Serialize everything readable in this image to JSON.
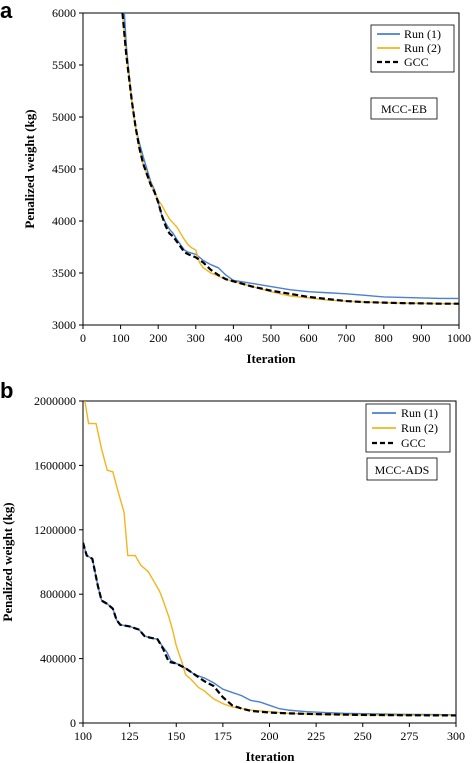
{
  "chart_data": [
    {
      "type": "line",
      "panel_label": "a",
      "xlabel": "Iteration",
      "ylabel": "Penalized weight (kg)",
      "xlim": [
        0,
        1000
      ],
      "ylim": [
        3000,
        6000
      ],
      "x_ticks": [
        0,
        100,
        200,
        300,
        400,
        500,
        600,
        700,
        800,
        900,
        1000
      ],
      "y_ticks": [
        3000,
        3500,
        4000,
        4500,
        5000,
        5500,
        6000
      ],
      "x_tick_labels": [
        "0",
        "100",
        "200",
        "300",
        "400",
        "500",
        "600",
        "700",
        "800",
        "900",
        "1000"
      ],
      "y_tick_labels": [
        "3000",
        "3500",
        "4000",
        "4500",
        "5000",
        "5500",
        "6000"
      ],
      "grid": false,
      "legend_position": "top-right",
      "tag": "MCC-EB",
      "series": [
        {
          "name": "Run (1)",
          "color": "#4a7fd4",
          "style": "solid",
          "points": [
            [
              110,
              6000
            ],
            [
              115,
              5700
            ],
            [
              120,
              5500
            ],
            [
              130,
              5150
            ],
            [
              140,
              4900
            ],
            [
              150,
              4750
            ],
            [
              160,
              4620
            ],
            [
              170,
              4500
            ],
            [
              180,
              4380
            ],
            [
              190,
              4300
            ],
            [
              200,
              4180
            ],
            [
              210,
              4050
            ],
            [
              220,
              3980
            ],
            [
              230,
              3920
            ],
            [
              240,
              3880
            ],
            [
              250,
              3820
            ],
            [
              260,
              3770
            ],
            [
              270,
              3720
            ],
            [
              280,
              3700
            ],
            [
              300,
              3680
            ],
            [
              320,
              3620
            ],
            [
              340,
              3580
            ],
            [
              360,
              3550
            ],
            [
              380,
              3480
            ],
            [
              400,
              3430
            ],
            [
              450,
              3400
            ],
            [
              500,
              3370
            ],
            [
              550,
              3340
            ],
            [
              600,
              3320
            ],
            [
              650,
              3310
            ],
            [
              700,
              3300
            ],
            [
              750,
              3285
            ],
            [
              800,
              3270
            ],
            [
              850,
              3265
            ],
            [
              900,
              3260
            ],
            [
              950,
              3255
            ],
            [
              1000,
              3255
            ]
          ]
        },
        {
          "name": "Run (2)",
          "color": "#f2b51d",
          "style": "solid",
          "points": [
            [
              105,
              6000
            ],
            [
              110,
              5800
            ],
            [
              115,
              5600
            ],
            [
              120,
              5450
            ],
            [
              130,
              5150
            ],
            [
              140,
              4900
            ],
            [
              150,
              4700
            ],
            [
              160,
              4550
            ],
            [
              170,
              4450
            ],
            [
              180,
              4350
            ],
            [
              190,
              4280
            ],
            [
              200,
              4200
            ],
            [
              210,
              4150
            ],
            [
              220,
              4080
            ],
            [
              230,
              4020
            ],
            [
              240,
              3980
            ],
            [
              250,
              3940
            ],
            [
              260,
              3880
            ],
            [
              270,
              3820
            ],
            [
              280,
              3770
            ],
            [
              290,
              3740
            ],
            [
              300,
              3720
            ],
            [
              310,
              3600
            ],
            [
              320,
              3550
            ],
            [
              340,
              3500
            ],
            [
              360,
              3470
            ],
            [
              380,
              3440
            ],
            [
              400,
              3420
            ],
            [
              450,
              3370
            ],
            [
              500,
              3320
            ],
            [
              550,
              3280
            ],
            [
              600,
              3260
            ],
            [
              650,
              3240
            ],
            [
              700,
              3230
            ],
            [
              750,
              3220
            ],
            [
              800,
              3215
            ],
            [
              850,
              3210
            ],
            [
              900,
              3208
            ],
            [
              950,
              3205
            ],
            [
              1000,
              3205
            ]
          ]
        },
        {
          "name": "GCC",
          "color": "#000000",
          "style": "dashed",
          "points": [
            [
              105,
              6000
            ],
            [
              110,
              5800
            ],
            [
              115,
              5600
            ],
            [
              120,
              5450
            ],
            [
              130,
              5150
            ],
            [
              140,
              4900
            ],
            [
              150,
              4700
            ],
            [
              160,
              4550
            ],
            [
              170,
              4450
            ],
            [
              180,
              4350
            ],
            [
              190,
              4280
            ],
            [
              200,
              4180
            ],
            [
              210,
              4050
            ],
            [
              220,
              3950
            ],
            [
              230,
              3880
            ],
            [
              240,
              3850
            ],
            [
              250,
              3800
            ],
            [
              260,
              3750
            ],
            [
              270,
              3700
            ],
            [
              280,
              3680
            ],
            [
              300,
              3650
            ],
            [
              320,
              3600
            ],
            [
              340,
              3530
            ],
            [
              360,
              3480
            ],
            [
              380,
              3440
            ],
            [
              400,
              3420
            ],
            [
              450,
              3370
            ],
            [
              500,
              3330
            ],
            [
              550,
              3300
            ],
            [
              600,
              3270
            ],
            [
              650,
              3250
            ],
            [
              700,
              3230
            ],
            [
              750,
              3220
            ],
            [
              800,
              3215
            ],
            [
              850,
              3210
            ],
            [
              900,
              3208
            ],
            [
              950,
              3205
            ],
            [
              1000,
              3205
            ]
          ]
        }
      ]
    },
    {
      "type": "line",
      "panel_label": "b",
      "xlabel": "Iteration",
      "ylabel": "Penalized weight (kg)",
      "xlim": [
        100,
        300
      ],
      "ylim": [
        0,
        2000000
      ],
      "x_ticks": [
        100,
        125,
        150,
        175,
        200,
        225,
        250,
        275,
        300
      ],
      "y_ticks": [
        0,
        400000,
        800000,
        1200000,
        1600000,
        2000000
      ],
      "x_tick_labels": [
        "100",
        "125",
        "150",
        "175",
        "200",
        "225",
        "250",
        "275",
        "300"
      ],
      "y_tick_labels": [
        "0",
        "400000",
        "800000",
        "1200000",
        "1600000",
        "2000000"
      ],
      "grid": false,
      "legend_position": "top-right",
      "tag": "MCC-ADS",
      "series": [
        {
          "name": "Run (1)",
          "color": "#4a7fd4",
          "style": "solid",
          "points": [
            [
              100,
              1120000
            ],
            [
              102,
              1040000
            ],
            [
              105,
              1020000
            ],
            [
              108,
              850000
            ],
            [
              110,
              760000
            ],
            [
              113,
              740000
            ],
            [
              116,
              710000
            ],
            [
              118,
              640000
            ],
            [
              120,
              610000
            ],
            [
              125,
              600000
            ],
            [
              130,
              580000
            ],
            [
              133,
              540000
            ],
            [
              136,
              530000
            ],
            [
              140,
              520000
            ],
            [
              143,
              470000
            ],
            [
              145,
              440000
            ],
            [
              147,
              390000
            ],
            [
              150,
              370000
            ],
            [
              155,
              340000
            ],
            [
              160,
              300000
            ],
            [
              165,
              280000
            ],
            [
              170,
              250000
            ],
            [
              175,
              210000
            ],
            [
              180,
              190000
            ],
            [
              185,
              170000
            ],
            [
              190,
              140000
            ],
            [
              195,
              130000
            ],
            [
              200,
              110000
            ],
            [
              205,
              90000
            ],
            [
              210,
              80000
            ],
            [
              220,
              70000
            ],
            [
              230,
              65000
            ],
            [
              240,
              60000
            ],
            [
              250,
              58000
            ],
            [
              260,
              56000
            ],
            [
              270,
              54000
            ],
            [
              280,
              53000
            ],
            [
              290,
              52000
            ],
            [
              300,
              50000
            ]
          ]
        },
        {
          "name": "Run (2)",
          "color": "#f2b51d",
          "style": "solid",
          "points": [
            [
              101,
              2000000
            ],
            [
              103,
              1860000
            ],
            [
              107,
              1860000
            ],
            [
              110,
              1700000
            ],
            [
              113,
              1570000
            ],
            [
              116,
              1560000
            ],
            [
              119,
              1430000
            ],
            [
              122,
              1310000
            ],
            [
              124,
              1040000
            ],
            [
              128,
              1040000
            ],
            [
              131,
              980000
            ],
            [
              135,
              940000
            ],
            [
              138,
              880000
            ],
            [
              141,
              820000
            ],
            [
              143,
              760000
            ],
            [
              146,
              660000
            ],
            [
              148,
              580000
            ],
            [
              150,
              480000
            ],
            [
              153,
              380000
            ],
            [
              155,
              300000
            ],
            [
              158,
              270000
            ],
            [
              162,
              220000
            ],
            [
              165,
              200000
            ],
            [
              170,
              150000
            ],
            [
              175,
              120000
            ],
            [
              180,
              100000
            ],
            [
              190,
              80000
            ],
            [
              200,
              70000
            ],
            [
              210,
              60000
            ],
            [
              225,
              55000
            ],
            [
              250,
              50000
            ],
            [
              275,
              48000
            ],
            [
              300,
              47000
            ]
          ]
        },
        {
          "name": "GCC",
          "color": "#000000",
          "style": "dashed",
          "points": [
            [
              100,
              1120000
            ],
            [
              102,
              1040000
            ],
            [
              105,
              1020000
            ],
            [
              108,
              850000
            ],
            [
              110,
              760000
            ],
            [
              113,
              740000
            ],
            [
              116,
              710000
            ],
            [
              118,
              640000
            ],
            [
              120,
              610000
            ],
            [
              125,
              600000
            ],
            [
              130,
              580000
            ],
            [
              133,
              540000
            ],
            [
              136,
              530000
            ],
            [
              140,
              520000
            ],
            [
              143,
              460000
            ],
            [
              146,
              380000
            ],
            [
              150,
              370000
            ],
            [
              155,
              340000
            ],
            [
              160,
              300000
            ],
            [
              165,
              260000
            ],
            [
              170,
              230000
            ],
            [
              175,
              160000
            ],
            [
              180,
              110000
            ],
            [
              185,
              90000
            ],
            [
              190,
              75000
            ],
            [
              200,
              65000
            ],
            [
              210,
              60000
            ],
            [
              225,
              55000
            ],
            [
              250,
              50000
            ],
            [
              275,
              48000
            ],
            [
              300,
              47000
            ]
          ]
        }
      ]
    }
  ]
}
